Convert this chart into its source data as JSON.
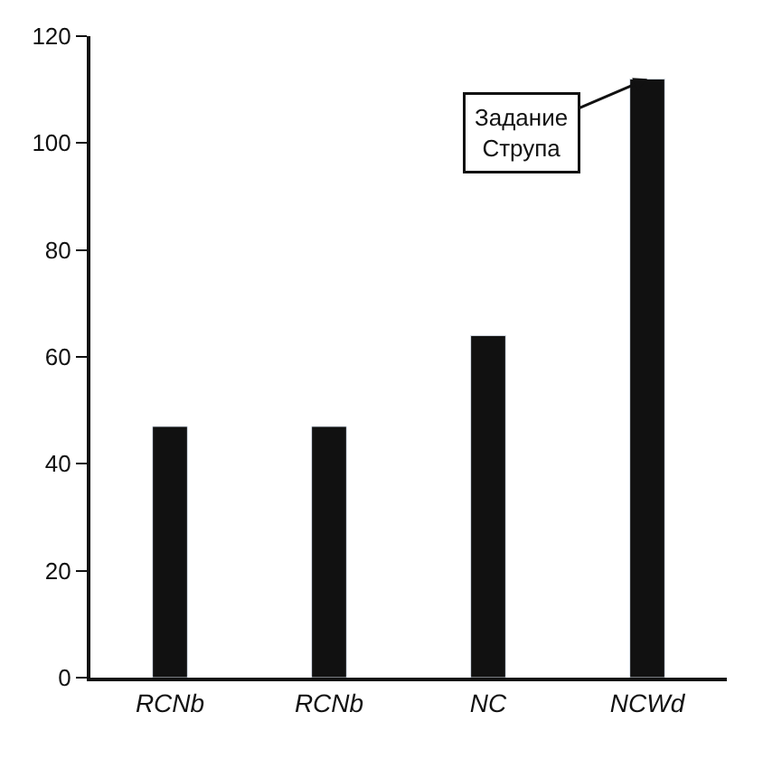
{
  "chart_data": {
    "type": "bar",
    "categories": [
      "RCNb",
      "RCNb",
      "NC",
      "NCWd"
    ],
    "values": [
      47,
      47,
      64,
      112
    ],
    "color": "#111111",
    "ylim": [
      0,
      120
    ],
    "yticks": [
      0,
      20,
      40,
      60,
      80,
      100,
      120
    ],
    "legend": false,
    "annotations": [
      {
        "text": "Задание\nСтрупа",
        "x": "NCWd",
        "y": 112
      }
    ]
  }
}
